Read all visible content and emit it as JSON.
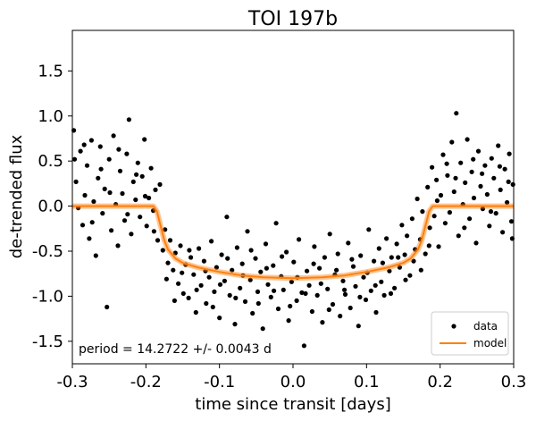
{
  "chart_data": {
    "type": "scatter",
    "title": "TOI 197b",
    "xlabel": "time since transit [days]",
    "ylabel": "de-trended flux",
    "xlim": [
      -0.3,
      0.3
    ],
    "ylim": [
      -1.75,
      1.95
    ],
    "x_ticks": [
      -0.3,
      -0.2,
      -0.1,
      0.0,
      0.1,
      0.2,
      0.3
    ],
    "x_tick_labels": [
      "-0.3",
      "-0.2",
      "-0.1",
      "0.0",
      "0.1",
      "0.2",
      "0.3"
    ],
    "y_ticks": [
      -1.5,
      -1.0,
      -0.5,
      0.0,
      0.5,
      1.0,
      1.5
    ],
    "y_tick_labels": [
      "-1.5",
      "-1.0",
      "-0.5",
      "0.0",
      "0.5",
      "1.0",
      "1.5"
    ],
    "grid": false,
    "annotation": "period = 14.2722 +/- 0.0043 d",
    "legend": {
      "placement": "lower-right",
      "entries": [
        "data",
        "model"
      ]
    },
    "colors": {
      "data": "#000000",
      "model": "#ff7f0e"
    },
    "series": [
      {
        "name": "data",
        "kind": "scatter",
        "points": [
          [
            -0.298,
            0.84
          ],
          [
            -0.295,
            0.27
          ],
          [
            -0.292,
            -0.02
          ],
          [
            -0.289,
            0.61
          ],
          [
            -0.286,
            -0.21
          ],
          [
            -0.283,
            0.12
          ],
          [
            -0.28,
            0.45
          ],
          [
            -0.277,
            -0.36
          ],
          [
            -0.274,
            0.73
          ],
          [
            -0.271,
            0.05
          ],
          [
            -0.268,
            -0.55
          ],
          [
            -0.265,
            0.31
          ],
          [
            -0.262,
            0.66
          ],
          [
            -0.259,
            -0.08
          ],
          [
            -0.256,
            0.19
          ],
          [
            -0.253,
            -1.12
          ],
          [
            -0.25,
            0.52
          ],
          [
            -0.247,
            -0.27
          ],
          [
            -0.244,
            0.78
          ],
          [
            -0.241,
            0.02
          ],
          [
            -0.238,
            -0.44
          ],
          [
            -0.235,
            0.39
          ],
          [
            -0.232,
            0.14
          ],
          [
            -0.229,
            -0.16
          ],
          [
            -0.226,
            0.58
          ],
          [
            -0.223,
            0.96
          ],
          [
            -0.22,
            -0.31
          ],
          [
            -0.217,
            0.27
          ],
          [
            -0.214,
            0.07
          ],
          [
            -0.211,
            0.48
          ],
          [
            -0.208,
            -0.12
          ],
          [
            -0.205,
            0.33
          ],
          [
            -0.202,
            0.74
          ],
          [
            -0.199,
            -0.22
          ],
          [
            -0.196,
            0.09
          ],
          [
            -0.193,
            0.42
          ],
          [
            -0.19,
            -0.05
          ],
          [
            -0.187,
            0.18
          ],
          [
            -0.184,
            -0.38
          ],
          [
            -0.181,
            0.24
          ],
          [
            -0.177,
            -0.49
          ],
          [
            -0.174,
            -0.26
          ],
          [
            -0.17,
            -0.63
          ],
          [
            -0.167,
            -0.38
          ],
          [
            -0.163,
            -0.71
          ],
          [
            -0.16,
            -0.52
          ],
          [
            -0.156,
            -0.86
          ],
          [
            -0.153,
            -0.44
          ],
          [
            -0.149,
            -0.97
          ],
          [
            -0.146,
            -0.65
          ],
          [
            -0.142,
            -1.02
          ],
          [
            -0.139,
            -0.57
          ],
          [
            -0.135,
            -0.76
          ],
          [
            -0.132,
            -1.18
          ],
          [
            -0.128,
            -0.47
          ],
          [
            -0.125,
            -0.88
          ],
          [
            -0.121,
            -0.61
          ],
          [
            -0.118,
            -1.08
          ],
          [
            -0.114,
            -0.79
          ],
          [
            -0.111,
            -0.39
          ],
          [
            -0.107,
            -0.95
          ],
          [
            -0.104,
            -0.68
          ],
          [
            -0.1,
            -1.24
          ],
          [
            -0.097,
            -0.54
          ],
          [
            -0.093,
            -0.83
          ],
          [
            -0.09,
            -0.12
          ],
          [
            -0.086,
            -0.99
          ],
          [
            -0.083,
            -0.71
          ],
          [
            -0.079,
            -1.31
          ],
          [
            -0.076,
            -0.46
          ],
          [
            -0.072,
            -0.91
          ],
          [
            -0.069,
            -0.64
          ],
          [
            -0.065,
            -1.06
          ],
          [
            -0.062,
            -0.28
          ],
          [
            -0.058,
            -0.82
          ],
          [
            -0.055,
            -1.19
          ],
          [
            -0.051,
            -0.58
          ],
          [
            -0.048,
            -0.95
          ],
          [
            -0.044,
            -0.73
          ],
          [
            -0.041,
            -1.36
          ],
          [
            -0.037,
            -0.42
          ],
          [
            -0.034,
            -0.87
          ],
          [
            -0.03,
            -1.01
          ],
          [
            -0.027,
            -0.66
          ],
          [
            -0.023,
            -0.19
          ],
          [
            -0.02,
            -1.14
          ],
          [
            -0.016,
            -0.78
          ],
          [
            -0.013,
            -0.93
          ],
          [
            -0.009,
            -0.51
          ],
          [
            -0.006,
            -1.27
          ],
          [
            -0.002,
            -0.84
          ],
          [
            0.001,
            -0.62
          ],
          [
            0.005,
            -1.05
          ],
          [
            0.008,
            -0.37
          ],
          [
            0.012,
            -0.96
          ],
          [
            0.015,
            -1.55
          ],
          [
            0.019,
            -0.72
          ],
          [
            0.022,
            -0.88
          ],
          [
            0.026,
            -1.17
          ],
          [
            0.029,
            -0.45
          ],
          [
            0.033,
            -0.99
          ],
          [
            0.036,
            -0.69
          ],
          [
            0.04,
            -1.29
          ],
          [
            0.043,
            -0.57
          ],
          [
            0.047,
            -0.92
          ],
          [
            0.05,
            -0.31
          ],
          [
            0.054,
            -1.09
          ],
          [
            0.057,
            -0.76
          ],
          [
            0.061,
            -0.53
          ],
          [
            0.064,
            -1.22
          ],
          [
            0.068,
            -0.83
          ],
          [
            0.071,
            -0.98
          ],
          [
            0.075,
            -0.41
          ],
          [
            0.078,
            -1.13
          ],
          [
            0.082,
            -0.67
          ],
          [
            0.085,
            -0.89
          ],
          [
            0.089,
            -1.33
          ],
          [
            0.092,
            -0.55
          ],
          [
            0.096,
            -0.79
          ],
          [
            0.099,
            -1.04
          ],
          [
            0.103,
            -0.26
          ],
          [
            0.106,
            -0.94
          ],
          [
            0.11,
            -0.61
          ],
          [
            0.113,
            -1.18
          ],
          [
            0.117,
            -0.47
          ],
          [
            0.12,
            -0.84
          ],
          [
            0.124,
            -0.99
          ],
          [
            0.127,
            -0.36
          ],
          [
            0.131,
            -0.72
          ],
          [
            0.134,
            -0.57
          ],
          [
            0.138,
            -0.91
          ],
          [
            0.141,
            -0.42
          ],
          [
            0.145,
            -0.68
          ],
          [
            0.148,
            -0.21
          ],
          [
            0.152,
            -0.54
          ],
          [
            0.155,
            -0.33
          ],
          [
            0.159,
            -0.77
          ],
          [
            0.162,
            -0.14
          ],
          [
            0.166,
            -0.48
          ],
          [
            0.169,
            0.08
          ],
          [
            0.173,
            -0.37
          ],
          [
            0.176,
            -0.06
          ],
          [
            0.18,
            -0.53
          ],
          [
            0.183,
            0.21
          ],
          [
            0.186,
            -0.24
          ],
          [
            0.189,
            0.43
          ],
          [
            0.192,
            -0.11
          ],
          [
            0.195,
            0.29
          ],
          [
            0.198,
            -0.45
          ],
          [
            0.201,
            0.12
          ],
          [
            0.204,
            0.57
          ],
          [
            0.207,
            -0.19
          ],
          [
            0.21,
            0.34
          ],
          [
            0.213,
            -0.07
          ],
          [
            0.216,
            0.71
          ],
          [
            0.219,
            0.16
          ],
          [
            0.222,
            1.03
          ],
          [
            0.225,
            -0.33
          ],
          [
            0.228,
            0.48
          ],
          [
            0.231,
            0.02
          ],
          [
            0.234,
            0.26
          ],
          [
            0.237,
            0.74
          ],
          [
            0.24,
            -0.14
          ],
          [
            0.243,
            0.38
          ],
          [
            0.246,
            0.09
          ],
          [
            0.249,
            -0.41
          ],
          [
            0.252,
            0.61
          ],
          [
            0.255,
            0.22
          ],
          [
            0.258,
            -0.03
          ],
          [
            0.261,
            0.45
          ],
          [
            0.264,
            0.13
          ],
          [
            0.267,
            -0.22
          ],
          [
            0.27,
            0.53
          ],
          [
            0.273,
            0.31
          ],
          [
            0.276,
            -0.08
          ],
          [
            0.279,
            0.67
          ],
          [
            0.282,
            0.18
          ],
          [
            0.285,
            -0.29
          ],
          [
            0.288,
            0.41
          ],
          [
            0.291,
            0.04
          ],
          [
            0.294,
            0.58
          ],
          [
            0.297,
            -0.17
          ],
          [
            0.299,
            0.24
          ],
          [
            -0.297,
            0.52
          ],
          [
            -0.284,
            0.68
          ],
          [
            -0.273,
            -0.18
          ],
          [
            -0.261,
            0.41
          ],
          [
            -0.249,
            0.15
          ],
          [
            -0.237,
            0.63
          ],
          [
            -0.225,
            -0.09
          ],
          [
            -0.213,
            0.35
          ],
          [
            -0.201,
            0.11
          ],
          [
            -0.189,
            -0.28
          ],
          [
            -0.172,
            -0.81
          ],
          [
            -0.161,
            -1.05
          ],
          [
            -0.151,
            -0.74
          ],
          [
            -0.141,
            -0.49
          ],
          [
            -0.131,
            -0.93
          ],
          [
            -0.119,
            -0.72
          ],
          [
            -0.109,
            -1.12
          ],
          [
            -0.099,
            -0.87
          ],
          [
            -0.089,
            -0.58
          ],
          [
            -0.078,
            -1.02
          ],
          [
            -0.068,
            -0.77
          ],
          [
            -0.057,
            -0.49
          ],
          [
            -0.047,
            -1.08
          ],
          [
            -0.036,
            -0.69
          ],
          [
            -0.026,
            -0.94
          ],
          [
            -0.015,
            -0.56
          ],
          [
            -0.004,
            -1.11
          ],
          [
            0.006,
            -0.79
          ],
          [
            0.017,
            -0.97
          ],
          [
            0.028,
            -0.64
          ],
          [
            0.038,
            -0.86
          ],
          [
            0.049,
            -1.15
          ],
          [
            0.059,
            -0.71
          ],
          [
            0.07,
            -0.93
          ],
          [
            0.08,
            -0.59
          ],
          [
            0.091,
            -1.01
          ],
          [
            0.101,
            -0.74
          ],
          [
            0.112,
            -0.88
          ],
          [
            0.122,
            -0.63
          ],
          [
            0.133,
            -0.97
          ],
          [
            0.143,
            -0.57
          ],
          [
            0.153,
            -0.82
          ],
          [
            0.164,
            -0.61
          ],
          [
            0.174,
            -0.71
          ],
          [
            0.185,
            -0.44
          ],
          [
            0.196,
            0.06
          ],
          [
            0.209,
            0.47
          ],
          [
            0.221,
            0.31
          ],
          [
            0.233,
            -0.24
          ],
          [
            0.245,
            0.52
          ],
          [
            0.257,
            0.36
          ],
          [
            0.269,
            -0.06
          ],
          [
            0.281,
            0.44
          ],
          [
            0.293,
            0.27
          ],
          [
            0.298,
            -0.36
          ]
        ]
      },
      {
        "name": "model",
        "kind": "line",
        "points": [
          [
            -0.3,
            0.0
          ],
          [
            -0.19,
            0.0
          ],
          [
            -0.185,
            -0.06
          ],
          [
            -0.18,
            -0.22
          ],
          [
            -0.175,
            -0.38
          ],
          [
            -0.17,
            -0.48
          ],
          [
            -0.16,
            -0.58
          ],
          [
            -0.15,
            -0.63
          ],
          [
            -0.13,
            -0.68
          ],
          [
            -0.1,
            -0.73
          ],
          [
            -0.07,
            -0.77
          ],
          [
            -0.04,
            -0.79
          ],
          [
            0.0,
            -0.8
          ],
          [
            0.04,
            -0.79
          ],
          [
            0.07,
            -0.77
          ],
          [
            0.1,
            -0.73
          ],
          [
            0.13,
            -0.68
          ],
          [
            0.15,
            -0.63
          ],
          [
            0.16,
            -0.58
          ],
          [
            0.17,
            -0.48
          ],
          [
            0.175,
            -0.38
          ],
          [
            0.18,
            -0.22
          ],
          [
            0.185,
            -0.06
          ],
          [
            0.19,
            0.0
          ],
          [
            0.3,
            0.0
          ]
        ]
      }
    ]
  }
}
